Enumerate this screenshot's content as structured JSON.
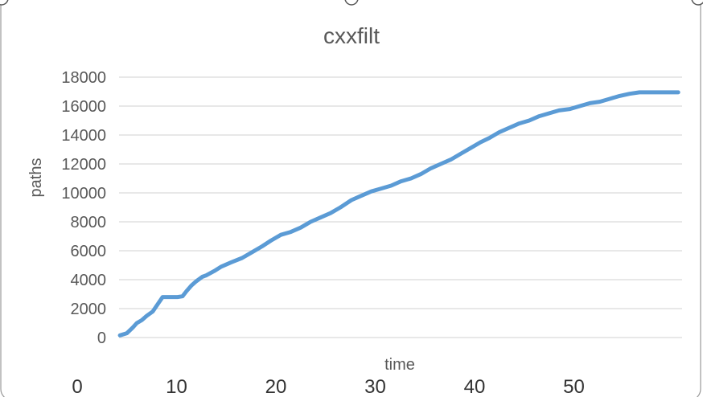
{
  "chart_data": {
    "type": "line",
    "title": "cxxfilt",
    "xlabel": "time",
    "ylabel": "paths",
    "ylim": [
      0,
      18000
    ],
    "yticks": [
      0,
      2000,
      4000,
      6000,
      8000,
      10000,
      12000,
      14000,
      16000,
      18000
    ],
    "xlim": [
      0,
      60
    ],
    "xticks": [
      0,
      10,
      20,
      30,
      40,
      50
    ],
    "grid": true,
    "legend": "none",
    "colors": {
      "line": "#5b9bd5",
      "grid": "#d9d9d9",
      "text": "#595959",
      "frame": "#999999"
    },
    "series": [
      {
        "x": [
          4.3,
          5.0,
          5.6,
          6.0,
          6.5,
          7.0,
          7.6,
          8.1,
          8.6,
          9.2,
          10.1,
          10.6,
          11.0,
          11.5,
          12.0,
          12.6,
          13.0,
          13.8,
          14.5,
          15.5,
          16.6,
          17.6,
          18.6,
          19.5,
          20.5,
          21.5,
          22.5,
          23.5,
          24.5,
          25.5,
          26.5,
          27.6,
          28.6,
          29.6,
          30.6,
          31.6,
          32.6,
          33.6,
          34.6,
          35.6,
          36.6,
          37.6,
          38.6,
          39.6,
          40.6,
          41.5,
          42.5,
          43.5,
          44.5,
          45.5,
          46.5,
          47.5,
          48.5,
          49.6,
          50.6,
          51.6,
          52.6,
          53.6,
          54.6,
          55.6,
          56.6,
          57.6,
          58.6,
          59.6,
          60.5
        ],
        "y": [
          150,
          300,
          700,
          1000,
          1200,
          1500,
          1800,
          2300,
          2800,
          2800,
          2800,
          2850,
          3200,
          3600,
          3900,
          4200,
          4300,
          4600,
          4900,
          5200,
          5500,
          5900,
          6300,
          6700,
          7100,
          7300,
          7600,
          8000,
          8300,
          8600,
          9000,
          9500,
          9800,
          10100,
          10300,
          10500,
          10800,
          11000,
          11300,
          11700,
          12000,
          12300,
          12700,
          13100,
          13500,
          13800,
          14200,
          14500,
          14800,
          15000,
          15300,
          15500,
          15700,
          15800,
          16000,
          16200,
          16300,
          16500,
          16700,
          16850,
          16950,
          16950,
          16950,
          16950,
          16950
        ]
      }
    ]
  }
}
